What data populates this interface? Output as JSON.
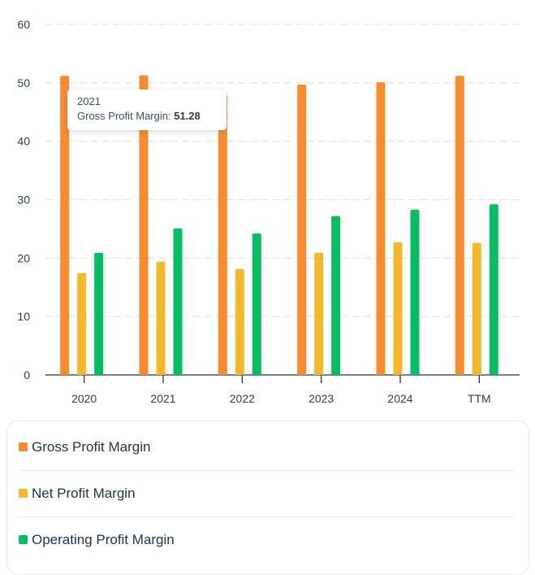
{
  "chart_data": {
    "type": "bar",
    "title": "",
    "xlabel": "",
    "ylabel": "",
    "categories": [
      "2020",
      "2021",
      "2022",
      "2023",
      "2024",
      "TTM"
    ],
    "series": [
      {
        "name": "Gross Profit Margin",
        "color": "#f98b2f",
        "values": [
          51.2,
          51.28,
          47.9,
          49.7,
          50.1,
          51.2
        ]
      },
      {
        "name": "Net Profit Margin",
        "color": "#f3b92b",
        "values": [
          17.4,
          19.4,
          18.1,
          20.9,
          22.7,
          22.6
        ]
      },
      {
        "name": "Operating Profit Margin",
        "color": "#04be61",
        "values": [
          20.9,
          25.1,
          24.2,
          27.2,
          28.3,
          29.2
        ]
      }
    ],
    "ylim": [
      0,
      60
    ],
    "yticks": [
      0,
      10,
      20,
      30,
      40,
      50,
      60
    ],
    "grid": true,
    "legend_position": "bottom",
    "tooltip": {
      "category": "2021",
      "series": "Gross Profit Margin",
      "value": "51.28"
    }
  },
  "tooltip": {
    "title": "2021",
    "label": "Gross Profit Margin:",
    "value": "51.28"
  },
  "legend": {
    "items": [
      {
        "label": "Gross Profit Margin",
        "color": "#f98b2f"
      },
      {
        "label": "Net Profit Margin",
        "color": "#f3b92b"
      },
      {
        "label": "Operating Profit Margin",
        "color": "#04be61"
      }
    ]
  }
}
